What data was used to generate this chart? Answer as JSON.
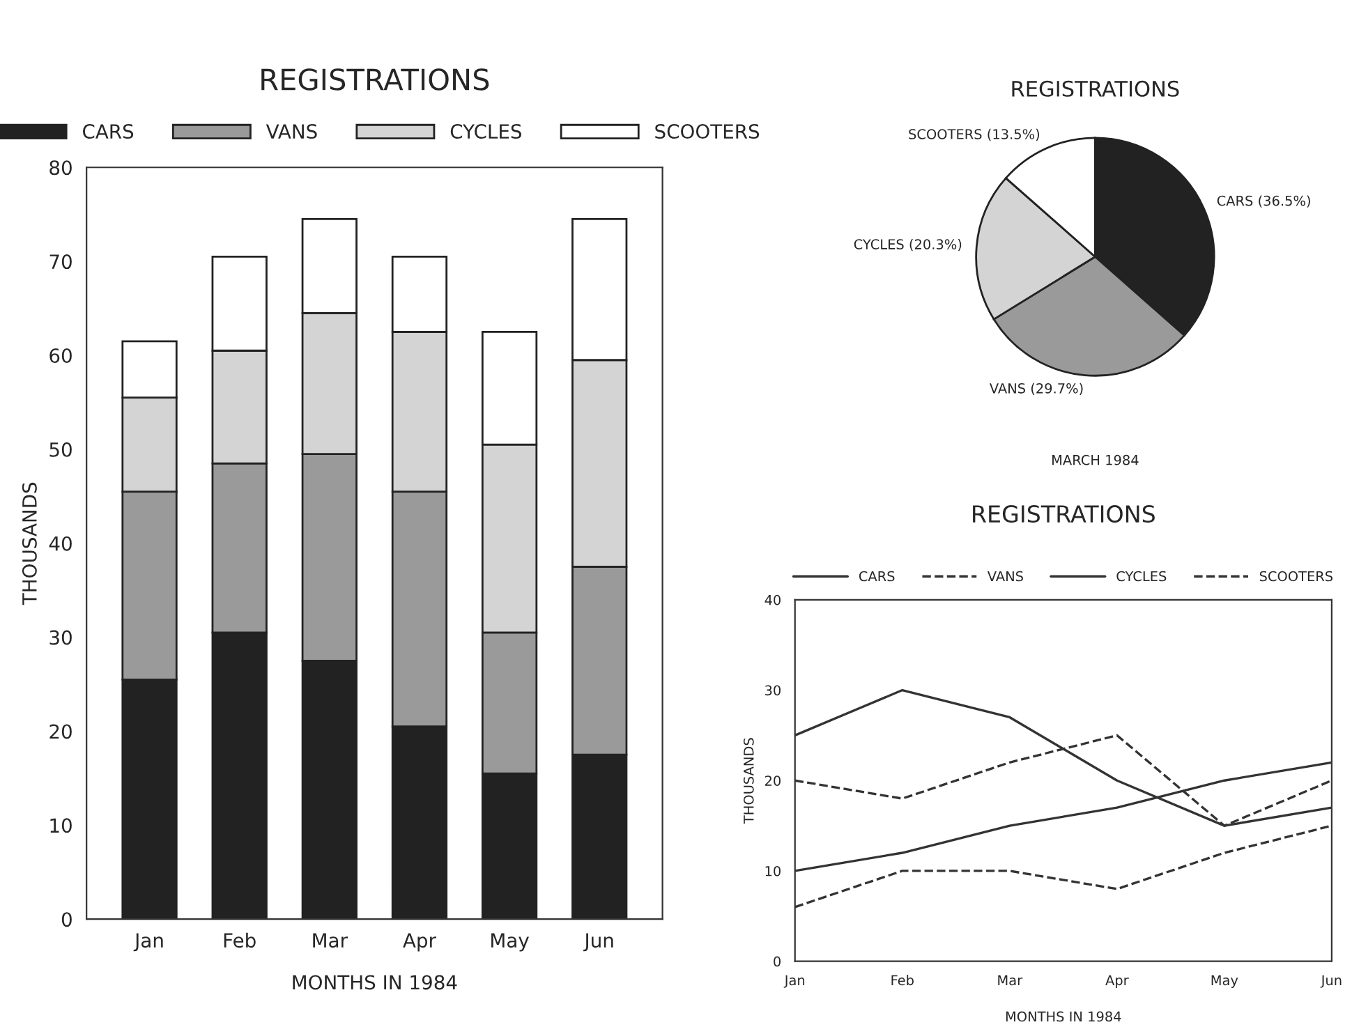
{
  "chart_data": [
    {
      "type": "bar",
      "title": "REGISTRATIONS",
      "xlabel": "MONTHS IN 1984",
      "ylabel": "THOUSANDS",
      "stacked": true,
      "legend": "top",
      "categories": [
        "Jan",
        "Feb",
        "Mar",
        "Apr",
        "May",
        "Jun"
      ],
      "series": [
        {
          "name": "CARS",
          "color": "#222222",
          "values": [
            25.5,
            30.5,
            27.5,
            20.5,
            15.5,
            17.5
          ]
        },
        {
          "name": "VANS",
          "color": "#9a9a9a",
          "values": [
            20,
            18,
            22,
            25,
            15,
            20
          ]
        },
        {
          "name": "CYCLES",
          "color": "#d4d4d4",
          "values": [
            10,
            12,
            15,
            17,
            20,
            22
          ]
        },
        {
          "name": "SCOOTERS",
          "color": "#ffffff",
          "values": [
            6,
            10,
            10,
            8,
            12,
            15
          ]
        }
      ],
      "ylim": [
        0,
        80
      ],
      "yticks": [
        0,
        10,
        20,
        30,
        40,
        50,
        60,
        70,
        80
      ],
      "grid": false
    },
    {
      "type": "pie",
      "title": "REGISTRATIONS",
      "annotations": [
        "MARCH 1984"
      ],
      "categories": [
        "CARS (36.5%)",
        "VANS (29.7%)",
        "CYCLES (20.3%)",
        "SCOOTERS (13.5%)"
      ],
      "values": [
        36.5,
        29.7,
        20.3,
        13.5
      ],
      "colors": [
        "#222222",
        "#9a9a9a",
        "#d4d4d4",
        "#ffffff"
      ]
    },
    {
      "type": "line",
      "title": "REGISTRATIONS",
      "xlabel": "MONTHS IN 1984",
      "ylabel": "THOUSANDS",
      "legend": "top",
      "marker": "none",
      "categories": [
        "Jan",
        "Feb",
        "Mar",
        "Apr",
        "May",
        "Jun"
      ],
      "series": [
        {
          "name": "CARS",
          "color": "#333333",
          "line_style": "solid",
          "values": [
            25,
            30,
            27,
            20,
            15,
            17
          ]
        },
        {
          "name": "VANS",
          "color": "#333333",
          "line_style": "dashed",
          "values": [
            20,
            18,
            22,
            25,
            15,
            20
          ]
        },
        {
          "name": "CYCLES",
          "color": "#333333",
          "line_style": "solid",
          "values": [
            10,
            12,
            15,
            17,
            20,
            22
          ]
        },
        {
          "name": "SCOOTERS",
          "color": "#333333",
          "line_style": "dashed",
          "values": [
            6,
            10,
            10,
            8,
            12,
            15
          ]
        }
      ],
      "ylim": [
        0,
        40
      ],
      "yticks": [
        0,
        10,
        20,
        30,
        40
      ],
      "grid": false
    }
  ]
}
